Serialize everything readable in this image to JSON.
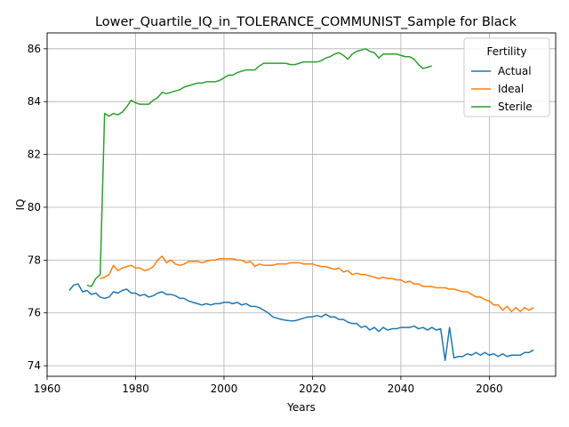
{
  "chart_data": {
    "type": "line",
    "title": "Lower_Quartile_IQ_in_TOLERANCE_COMMUNIST_Sample for Black",
    "xlabel": "Years",
    "ylabel": "IQ",
    "xlim": [
      1960,
      2075
    ],
    "ylim": [
      73.6,
      86.6
    ],
    "xticks": [
      1960,
      1980,
      2000,
      2020,
      2040,
      2060
    ],
    "yticks": [
      74,
      76,
      78,
      80,
      82,
      84,
      86
    ],
    "grid": true,
    "legend": {
      "title": "Fertility",
      "placement": "top-right"
    },
    "series": [
      {
        "name": "Actual",
        "color": "#1f77b4",
        "points": [
          [
            1965,
            76.85
          ],
          [
            1966,
            77.05
          ],
          [
            1967,
            77.1
          ],
          [
            1968,
            76.8
          ],
          [
            1969,
            76.85
          ],
          [
            1970,
            76.7
          ],
          [
            1971,
            76.75
          ],
          [
            1972,
            76.6
          ],
          [
            1973,
            76.55
          ],
          [
            1974,
            76.6
          ],
          [
            1975,
            76.8
          ],
          [
            1976,
            76.75
          ],
          [
            1977,
            76.85
          ],
          [
            1978,
            76.9
          ],
          [
            1979,
            76.75
          ],
          [
            1980,
            76.75
          ],
          [
            1981,
            76.65
          ],
          [
            1982,
            76.7
          ],
          [
            1983,
            76.6
          ],
          [
            1984,
            76.65
          ],
          [
            1985,
            76.75
          ],
          [
            1986,
            76.8
          ],
          [
            1987,
            76.7
          ],
          [
            1988,
            76.7
          ],
          [
            1989,
            76.65
          ],
          [
            1990,
            76.55
          ],
          [
            1991,
            76.55
          ],
          [
            1992,
            76.45
          ],
          [
            1993,
            76.4
          ],
          [
            1994,
            76.35
          ],
          [
            1995,
            76.3
          ],
          [
            1996,
            76.35
          ],
          [
            1997,
            76.3
          ],
          [
            1998,
            76.35
          ],
          [
            1999,
            76.35
          ],
          [
            2000,
            76.4
          ],
          [
            2001,
            76.4
          ],
          [
            2002,
            76.35
          ],
          [
            2003,
            76.4
          ],
          [
            2004,
            76.3
          ],
          [
            2005,
            76.35
          ],
          [
            2006,
            76.25
          ],
          [
            2007,
            76.25
          ],
          [
            2008,
            76.2
          ],
          [
            2009,
            76.1
          ],
          [
            2010,
            76.0
          ],
          [
            2011,
            75.85
          ],
          [
            2012,
            75.8
          ],
          [
            2013,
            75.75
          ],
          [
            2014,
            75.72
          ],
          [
            2015,
            75.7
          ],
          [
            2016,
            75.7
          ],
          [
            2017,
            75.75
          ],
          [
            2018,
            75.8
          ],
          [
            2019,
            75.85
          ],
          [
            2020,
            75.85
          ],
          [
            2021,
            75.9
          ],
          [
            2022,
            75.85
          ],
          [
            2023,
            75.95
          ],
          [
            2024,
            75.85
          ],
          [
            2025,
            75.85
          ],
          [
            2026,
            75.75
          ],
          [
            2027,
            75.75
          ],
          [
            2028,
            75.65
          ],
          [
            2029,
            75.6
          ],
          [
            2030,
            75.6
          ],
          [
            2031,
            75.45
          ],
          [
            2032,
            75.5
          ],
          [
            2033,
            75.35
          ],
          [
            2034,
            75.45
          ],
          [
            2035,
            75.3
          ],
          [
            2036,
            75.45
          ],
          [
            2037,
            75.35
          ],
          [
            2038,
            75.4
          ],
          [
            2039,
            75.4
          ],
          [
            2040,
            75.45
          ],
          [
            2041,
            75.45
          ],
          [
            2042,
            75.45
          ],
          [
            2043,
            75.5
          ],
          [
            2044,
            75.4
          ],
          [
            2045,
            75.45
          ],
          [
            2046,
            75.35
          ],
          [
            2047,
            75.45
          ],
          [
            2048,
            75.35
          ],
          [
            2049,
            75.4
          ],
          [
            2050,
            74.2
          ],
          [
            2051,
            75.45
          ],
          [
            2052,
            74.3
          ],
          [
            2053,
            74.35
          ],
          [
            2054,
            74.35
          ],
          [
            2055,
            74.45
          ],
          [
            2056,
            74.4
          ],
          [
            2057,
            74.5
          ],
          [
            2058,
            74.4
          ],
          [
            2059,
            74.5
          ],
          [
            2060,
            74.4
          ],
          [
            2061,
            74.45
          ],
          [
            2062,
            74.35
          ],
          [
            2063,
            74.45
          ],
          [
            2064,
            74.35
          ],
          [
            2065,
            74.4
          ],
          [
            2066,
            74.4
          ],
          [
            2067,
            74.4
          ],
          [
            2068,
            74.5
          ],
          [
            2069,
            74.5
          ],
          [
            2070,
            74.6
          ]
        ]
      },
      {
        "name": "Ideal",
        "color": "#ff7f0e",
        "points": [
          [
            1972,
            77.3
          ],
          [
            1973,
            77.35
          ],
          [
            1974,
            77.45
          ],
          [
            1975,
            77.8
          ],
          [
            1976,
            77.6
          ],
          [
            1977,
            77.7
          ],
          [
            1978,
            77.75
          ],
          [
            1979,
            77.8
          ],
          [
            1980,
            77.7
          ],
          [
            1981,
            77.7
          ],
          [
            1982,
            77.6
          ],
          [
            1983,
            77.65
          ],
          [
            1984,
            77.75
          ],
          [
            1985,
            78.0
          ],
          [
            1986,
            78.15
          ],
          [
            1987,
            77.9
          ],
          [
            1988,
            78.0
          ],
          [
            1989,
            77.85
          ],
          [
            1990,
            77.8
          ],
          [
            1991,
            77.85
          ],
          [
            1992,
            77.95
          ],
          [
            1993,
            77.95
          ],
          [
            1994,
            77.95
          ],
          [
            1995,
            77.9
          ],
          [
            1996,
            77.95
          ],
          [
            1997,
            78.0
          ],
          [
            1998,
            78.0
          ],
          [
            1999,
            78.05
          ],
          [
            2000,
            78.05
          ],
          [
            2001,
            78.05
          ],
          [
            2002,
            78.05
          ],
          [
            2003,
            78.0
          ],
          [
            2004,
            78.0
          ],
          [
            2005,
            77.9
          ],
          [
            2006,
            77.95
          ],
          [
            2007,
            77.75
          ],
          [
            2008,
            77.85
          ],
          [
            2009,
            77.8
          ],
          [
            2010,
            77.8
          ],
          [
            2011,
            77.8
          ],
          [
            2012,
            77.85
          ],
          [
            2013,
            77.85
          ],
          [
            2014,
            77.85
          ],
          [
            2015,
            77.9
          ],
          [
            2016,
            77.9
          ],
          [
            2017,
            77.9
          ],
          [
            2018,
            77.85
          ],
          [
            2019,
            77.85
          ],
          [
            2020,
            77.85
          ],
          [
            2021,
            77.8
          ],
          [
            2022,
            77.75
          ],
          [
            2023,
            77.75
          ],
          [
            2024,
            77.7
          ],
          [
            2025,
            77.65
          ],
          [
            2026,
            77.7
          ],
          [
            2027,
            77.55
          ],
          [
            2028,
            77.6
          ],
          [
            2029,
            77.45
          ],
          [
            2030,
            77.5
          ],
          [
            2031,
            77.45
          ],
          [
            2032,
            77.45
          ],
          [
            2033,
            77.4
          ],
          [
            2034,
            77.35
          ],
          [
            2035,
            77.3
          ],
          [
            2036,
            77.35
          ],
          [
            2037,
            77.3
          ],
          [
            2038,
            77.3
          ],
          [
            2039,
            77.25
          ],
          [
            2040,
            77.25
          ],
          [
            2041,
            77.15
          ],
          [
            2042,
            77.2
          ],
          [
            2043,
            77.1
          ],
          [
            2044,
            77.1
          ],
          [
            2045,
            77.0
          ],
          [
            2046,
            77.0
          ],
          [
            2047,
            77.0
          ],
          [
            2048,
            76.95
          ],
          [
            2049,
            76.95
          ],
          [
            2050,
            76.95
          ],
          [
            2051,
            76.9
          ],
          [
            2052,
            76.9
          ],
          [
            2053,
            76.85
          ],
          [
            2054,
            76.8
          ],
          [
            2055,
            76.8
          ],
          [
            2056,
            76.7
          ],
          [
            2057,
            76.6
          ],
          [
            2058,
            76.6
          ],
          [
            2059,
            76.5
          ],
          [
            2060,
            76.45
          ],
          [
            2061,
            76.3
          ],
          [
            2062,
            76.3
          ],
          [
            2063,
            76.1
          ],
          [
            2064,
            76.25
          ],
          [
            2065,
            76.05
          ],
          [
            2066,
            76.2
          ],
          [
            2067,
            76.05
          ],
          [
            2068,
            76.2
          ],
          [
            2069,
            76.1
          ],
          [
            2070,
            76.2
          ]
        ]
      },
      {
        "name": "Sterile",
        "color": "#2ca02c",
        "points": [
          [
            1969,
            77.05
          ],
          [
            1970,
            77.0
          ],
          [
            1971,
            77.3
          ],
          [
            1972,
            77.45
          ],
          [
            1973,
            83.55
          ],
          [
            1974,
            83.45
          ],
          [
            1975,
            83.55
          ],
          [
            1976,
            83.5
          ],
          [
            1977,
            83.6
          ],
          [
            1978,
            83.8
          ],
          [
            1979,
            84.05
          ],
          [
            1980,
            83.95
          ],
          [
            1981,
            83.9
          ],
          [
            1982,
            83.9
          ],
          [
            1983,
            83.9
          ],
          [
            1984,
            84.05
          ],
          [
            1985,
            84.15
          ],
          [
            1986,
            84.35
          ],
          [
            1987,
            84.3
          ],
          [
            1988,
            84.35
          ],
          [
            1989,
            84.4
          ],
          [
            1990,
            84.45
          ],
          [
            1991,
            84.55
          ],
          [
            1992,
            84.6
          ],
          [
            1993,
            84.65
          ],
          [
            1994,
            84.7
          ],
          [
            1995,
            84.7
          ],
          [
            1996,
            84.75
          ],
          [
            1997,
            84.75
          ],
          [
            1998,
            84.75
          ],
          [
            1999,
            84.8
          ],
          [
            2000,
            84.9
          ],
          [
            2001,
            85.0
          ],
          [
            2002,
            85.0
          ],
          [
            2003,
            85.1
          ],
          [
            2004,
            85.15
          ],
          [
            2005,
            85.2
          ],
          [
            2006,
            85.2
          ],
          [
            2007,
            85.2
          ],
          [
            2008,
            85.35
          ],
          [
            2009,
            85.45
          ],
          [
            2010,
            85.45
          ],
          [
            2011,
            85.45
          ],
          [
            2012,
            85.45
          ],
          [
            2013,
            85.45
          ],
          [
            2014,
            85.45
          ],
          [
            2015,
            85.4
          ],
          [
            2016,
            85.4
          ],
          [
            2017,
            85.45
          ],
          [
            2018,
            85.5
          ],
          [
            2019,
            85.5
          ],
          [
            2020,
            85.5
          ],
          [
            2021,
            85.5
          ],
          [
            2022,
            85.55
          ],
          [
            2023,
            85.65
          ],
          [
            2024,
            85.7
          ],
          [
            2025,
            85.8
          ],
          [
            2026,
            85.85
          ],
          [
            2027,
            85.75
          ],
          [
            2028,
            85.6
          ],
          [
            2029,
            85.8
          ],
          [
            2030,
            85.9
          ],
          [
            2031,
            85.95
          ],
          [
            2032,
            86.0
          ],
          [
            2033,
            85.9
          ],
          [
            2034,
            85.85
          ],
          [
            2035,
            85.65
          ],
          [
            2036,
            85.8
          ],
          [
            2037,
            85.8
          ],
          [
            2038,
            85.8
          ],
          [
            2039,
            85.8
          ],
          [
            2040,
            85.75
          ],
          [
            2041,
            85.7
          ],
          [
            2042,
            85.7
          ],
          [
            2043,
            85.6
          ],
          [
            2044,
            85.4
          ],
          [
            2045,
            85.25
          ],
          [
            2046,
            85.3
          ],
          [
            2047,
            85.35
          ]
        ]
      }
    ]
  }
}
